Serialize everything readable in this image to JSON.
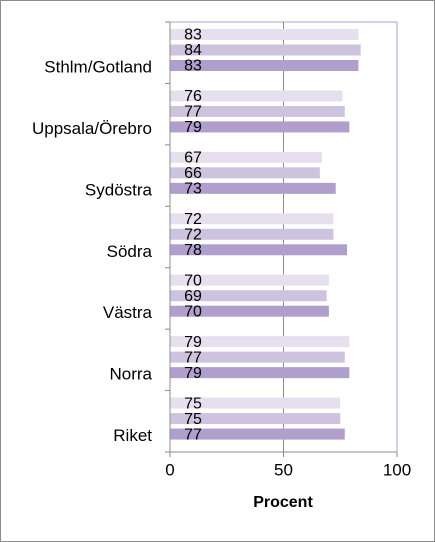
{
  "chart_data": {
    "type": "hbar",
    "categories": [
      "Sthlm/Gotland",
      "Uppsala/Örebro",
      "Sydöstra",
      "Södra",
      "Västra",
      "Norra",
      "Riket"
    ],
    "series": [
      {
        "color": "#e6e0ee",
        "values": [
          83,
          76,
          67,
          72,
          70,
          79,
          75
        ]
      },
      {
        "color": "#cdc3df",
        "values": [
          84,
          77,
          66,
          72,
          69,
          77,
          75
        ]
      },
      {
        "color": "#b09fcc",
        "values": [
          83,
          79,
          73,
          78,
          70,
          79,
          77
        ]
      }
    ],
    "xlim": [
      0,
      100
    ],
    "xticks": [
      0,
      50,
      100
    ],
    "xlabel": "Procent",
    "grid": true
  }
}
